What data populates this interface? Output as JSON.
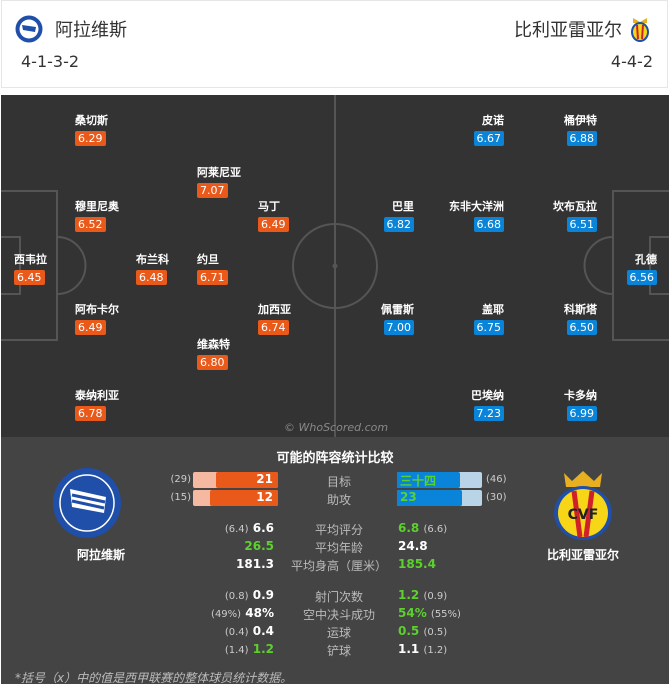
{
  "header": {
    "home": {
      "name": "阿拉维斯",
      "formation": "4-1-3-2"
    },
    "away": {
      "name": "比利亚雷亚尔",
      "formation": "4-4-2"
    }
  },
  "pitch": {
    "watermark": "© WhoScored.com",
    "home_players": [
      {
        "name": "西韦拉",
        "rating": "6.45"
      },
      {
        "name": "桑切斯",
        "rating": "6.29"
      },
      {
        "name": "穆里尼奥",
        "rating": "6.52"
      },
      {
        "name": "阿布卡尔",
        "rating": "6.49"
      },
      {
        "name": "泰纳利亚",
        "rating": "6.78"
      },
      {
        "name": "布兰科",
        "rating": "6.48"
      },
      {
        "name": "阿莱尼亚",
        "rating": "7.07"
      },
      {
        "name": "约旦",
        "rating": "6.71"
      },
      {
        "name": "维森特",
        "rating": "6.80"
      },
      {
        "name": "马丁",
        "rating": "6.49"
      },
      {
        "name": "加西亚",
        "rating": "6.74"
      }
    ],
    "away_players": [
      {
        "name": "皮诺",
        "rating": "6.67"
      },
      {
        "name": "桶伊特",
        "rating": "6.88"
      },
      {
        "name": "巴里",
        "rating": "6.82"
      },
      {
        "name": "东非大洋洲",
        "rating": "6.68"
      },
      {
        "name": "坎布瓦拉",
        "rating": "6.51"
      },
      {
        "name": "孔德",
        "rating": "6.56"
      },
      {
        "name": "佩雷斯",
        "rating": "7.00"
      },
      {
        "name": "盖耶",
        "rating": "6.75"
      },
      {
        "name": "科斯塔",
        "rating": "6.50"
      },
      {
        "name": "巴埃纳",
        "rating": "7.23"
      },
      {
        "name": "卡多纳",
        "rating": "6.99"
      }
    ]
  },
  "stats": {
    "title": "可能的阵容统计比较",
    "home_name": "阿拉维斯",
    "away_name": "比利亚雷亚尔",
    "bars": [
      {
        "label": "目标",
        "home": 21,
        "home_avg": 29,
        "home_avg_text": "(29)",
        "away_text": "三十四",
        "away": 34,
        "away_avg": 46,
        "away_avg_text": "(46)"
      },
      {
        "label": "助攻",
        "home": 12,
        "home_avg": 15,
        "home_avg_text": "(15)",
        "away_text": "23",
        "away": 23,
        "away_avg": 30,
        "away_avg_text": "(30)"
      }
    ],
    "rows": [
      {
        "label": "平均评分",
        "home": "6.6",
        "home_avg": "(6.4)",
        "away": "6.8",
        "away_avg": "(6.6)",
        "better": "away"
      },
      {
        "label": "平均年龄",
        "home": "26.5",
        "home_avg": "",
        "away": "24.8",
        "away_avg": "",
        "better": "home"
      },
      {
        "label": "平均身高（厘米）",
        "home": "181.3",
        "home_avg": "",
        "away": "185.4",
        "away_avg": "",
        "better": "away"
      },
      {
        "label": "射门次数",
        "home": "0.9",
        "home_avg": "(0.8)",
        "away": "1.2",
        "away_avg": "(0.9)",
        "better": "away"
      },
      {
        "label": "空中决斗成功",
        "home": "48%",
        "home_avg": "(49%)",
        "away": "54%",
        "away_avg": "(55%)",
        "better": "away"
      },
      {
        "label": "运球",
        "home": "0.4",
        "home_avg": "(0.4)",
        "away": "0.5",
        "away_avg": "(0.5)",
        "better": "away"
      },
      {
        "label": "铲球",
        "home": "1.2",
        "home_avg": "(1.4)",
        "away": "1.1",
        "away_avg": "(1.2)",
        "better": "home"
      }
    ],
    "footnote": "*括号（x）中的值是西甲联赛的整体球员统计数据。"
  },
  "colors": {
    "home": "#e8591a",
    "home_light": "#f4b9a0",
    "away": "#0a84d8",
    "away_light": "#b8d4e6",
    "better": "#5cd12e",
    "pitch": "#333333"
  }
}
